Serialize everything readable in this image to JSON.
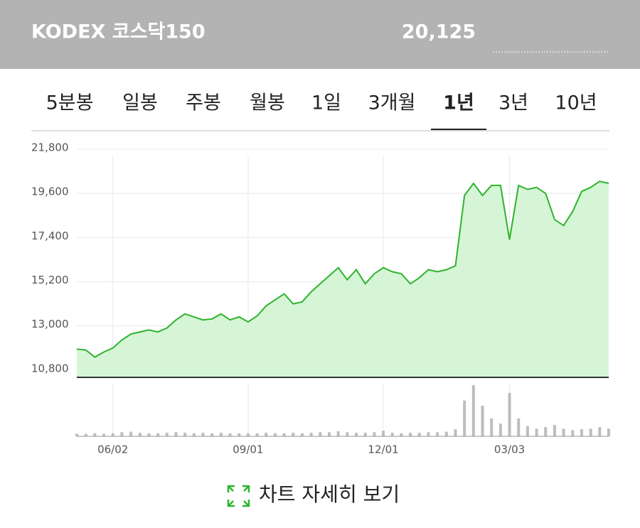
{
  "header": {
    "title": "KODEX 코스닥150",
    "price": "20,125"
  },
  "tabs": {
    "items": [
      "5분봉",
      "일봉",
      "주봉",
      "월봉",
      "1일",
      "3개월",
      "1년",
      "3년",
      "10년"
    ],
    "selected": 6
  },
  "chart_data": {
    "type": "area",
    "color": "#2db42d",
    "fill": "#d6f5d6",
    "categories": [
      null,
      null,
      null,
      null,
      "06/02",
      null,
      null,
      null,
      null,
      null,
      null,
      null,
      null,
      null,
      null,
      null,
      null,
      null,
      null,
      "09/01",
      null,
      null,
      null,
      null,
      null,
      null,
      null,
      null,
      null,
      null,
      null,
      null,
      null,
      null,
      "12/01",
      null,
      null,
      null,
      null,
      null,
      null,
      null,
      null,
      null,
      null,
      null,
      null,
      null,
      "03/03",
      null,
      null,
      null,
      null,
      null,
      null,
      null,
      null,
      null,
      null,
      null
    ],
    "values": [
      11850,
      11800,
      11450,
      11700,
      11900,
      12300,
      12600,
      12700,
      12800,
      12700,
      12900,
      13300,
      13600,
      13450,
      13300,
      13350,
      13600,
      13300,
      13450,
      13200,
      13500,
      14000,
      14300,
      14600,
      14100,
      14200,
      14700,
      15100,
      15500,
      15900,
      15300,
      15800,
      15100,
      15600,
      15900,
      15700,
      15600,
      15100,
      15400,
      15800,
      15700,
      15800,
      16000,
      19500,
      20100,
      19500,
      20000,
      20000,
      17300,
      20000,
      19800,
      19900,
      19600,
      18300,
      18000,
      18700,
      19700,
      19900,
      20200,
      20100
    ],
    "ylim": [
      10440,
      21800
    ],
    "yticks": [
      {
        "value": 10800,
        "label": "10,800"
      },
      {
        "value": 13000,
        "label": "13,000"
      },
      {
        "value": 15200,
        "label": "15,200"
      },
      {
        "value": 17400,
        "label": "17,400"
      },
      {
        "value": 19600,
        "label": "19,600"
      },
      {
        "value": 21800,
        "label": "21,800"
      }
    ],
    "grid": true,
    "volume": {
      "color": "#bdbdbd",
      "lim": [
        0,
        100
      ],
      "values": [
        5,
        5,
        6,
        5,
        6,
        8,
        9,
        7,
        6,
        6,
        7,
        8,
        7,
        6,
        7,
        6,
        7,
        6,
        6,
        6,
        6,
        7,
        6,
        6,
        7,
        6,
        7,
        8,
        8,
        10,
        8,
        7,
        7,
        8,
        11,
        7,
        6,
        7,
        7,
        8,
        8,
        9,
        14,
        70,
        100,
        60,
        35,
        25,
        85,
        35,
        20,
        15,
        18,
        22,
        15,
        12,
        14,
        15,
        18,
        15
      ]
    }
  },
  "button": {
    "label": "차트 자세히 보기"
  }
}
